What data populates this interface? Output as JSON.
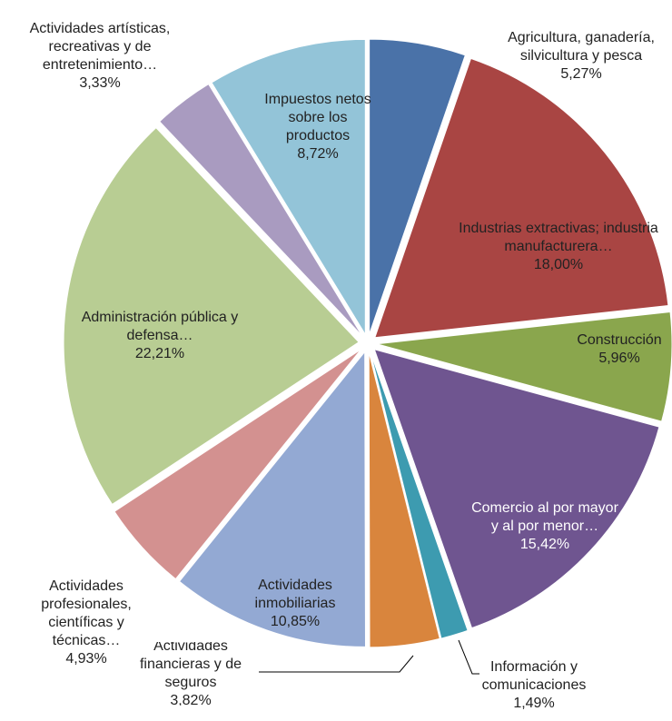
{
  "chart_data": {
    "type": "pie",
    "categories": [
      "Agricultura, ganadería, silvicultura y pesca",
      "Industrias extractivas; industria manufacturera…",
      "Construcción",
      "Comercio al por mayor y al por menor…",
      "Información y comunicaciones",
      "Actividades financieras y de seguros",
      "Actividades inmobiliarias",
      "Actividades profesionales, científicas y técnicas…",
      "Administración pública y defensa…",
      "Actividades artísticas, recreativas y de entretenimiento…",
      "Impuestos netos sobre los productos"
    ],
    "values": [
      5.27,
      18.0,
      5.96,
      15.42,
      1.49,
      3.82,
      10.85,
      4.93,
      22.21,
      3.33,
      8.72
    ],
    "value_labels": [
      "5,27%",
      "18,00%",
      "5,96%",
      "15,42%",
      "1,49%",
      "3,82%",
      "10,85%",
      "4,93%",
      "22,21%",
      "3,33%",
      "8,72%"
    ],
    "colors": [
      "#4a72a8",
      "#a94543",
      "#8aa64d",
      "#6f5590",
      "#3d9bb0",
      "#d9853d",
      "#93a9d3",
      "#d39190",
      "#b8cd93",
      "#a99bc0",
      "#93c4d8"
    ]
  }
}
